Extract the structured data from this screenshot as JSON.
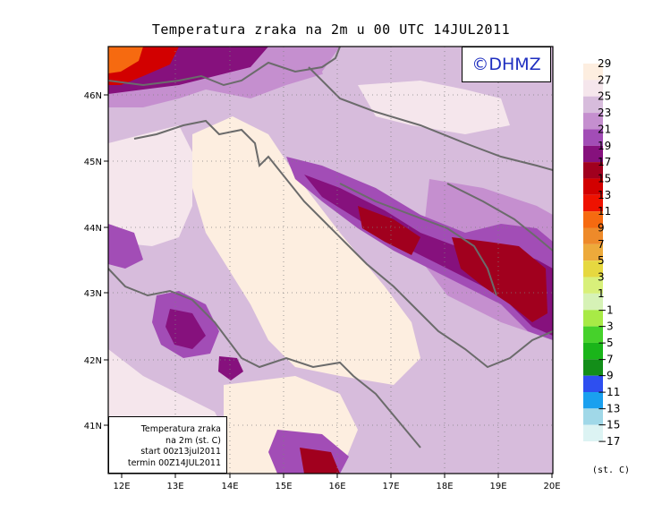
{
  "title": "Temperatura zraka na 2m u 00 UTC 14JUL2011",
  "logo_text": "©DHMZ",
  "info_box": {
    "line1": "Temperatura zraka",
    "line2": "na 2m (st. C)",
    "line3": "start 00z13jul2011",
    "line4": "termin 00Z14JUL2011"
  },
  "lon_labels": [
    "12E",
    "13E",
    "14E",
    "15E",
    "16E",
    "17E",
    "18E",
    "19E",
    "20E"
  ],
  "lat_labels": [
    "41N",
    "42N",
    "43N",
    "44N",
    "45N",
    "46N"
  ],
  "legend": {
    "unit": "(st. C)",
    "levels": [
      {
        "label": "29",
        "color": "#fdeee0"
      },
      {
        "label": "27",
        "color": "#f5e6ec"
      },
      {
        "label": "25",
        "color": "#d7bcdc"
      },
      {
        "label": "23",
        "color": "#c58fcf"
      },
      {
        "label": "21",
        "color": "#a24db6"
      },
      {
        "label": "19",
        "color": "#86117d"
      },
      {
        "label": "17",
        "color": "#a1001e"
      },
      {
        "label": "15",
        "color": "#d20000"
      },
      {
        "label": "13",
        "color": "#ef1200"
      },
      {
        "label": "11",
        "color": "#f66a10"
      },
      {
        "label": "9",
        "color": "#ee8a2a"
      },
      {
        "label": "7",
        "color": "#edaa3b"
      },
      {
        "label": "5",
        "color": "#e6d840"
      },
      {
        "label": "3",
        "color": "#d8f07a"
      },
      {
        "label": "1",
        "color": "#d6f2b6"
      },
      {
        "label": "−1",
        "color": "#a8ea46"
      },
      {
        "label": "−3",
        "color": "#46d12b"
      },
      {
        "label": "−5",
        "color": "#1ab51a"
      },
      {
        "label": "−7",
        "color": "#138e19"
      },
      {
        "label": "−9",
        "color": "#2e4ff0"
      },
      {
        "label": "−11",
        "color": "#1aa0ef"
      },
      {
        "label": "−13",
        "color": "#a0d8e8"
      },
      {
        "label": "−15",
        "color": "#dcf3f3"
      },
      {
        "label": "−17",
        "color": "#ffffff"
      }
    ]
  },
  "colors": {
    "frame": "#000000",
    "coastline": "#6b6b6b",
    "sea_warm": "#fdeee0",
    "land_base": "#d7bcdc"
  }
}
